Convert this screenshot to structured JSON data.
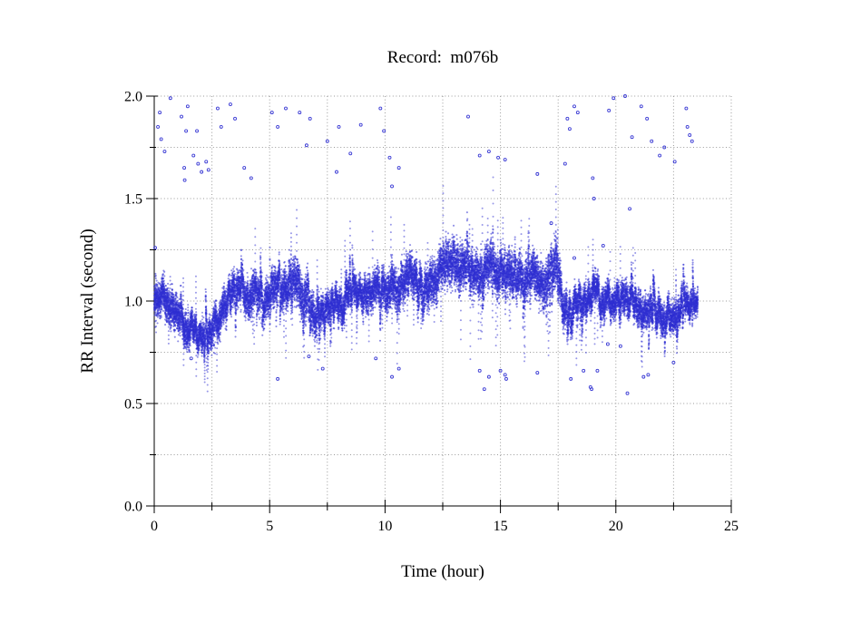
{
  "page": {
    "background": "#ffffff"
  },
  "record_id": "m076b",
  "chart_data": {
    "type": "scatter",
    "title": "Record:  m076b",
    "xlabel": "Time (hour)",
    "ylabel": "RR Interval (second)",
    "xlim": [
      0,
      25
    ],
    "ylim": [
      0,
      2
    ],
    "x_major_ticks": [
      0,
      5,
      10,
      15,
      20,
      25
    ],
    "x_major_labels": [
      "0",
      "5",
      "10",
      "15",
      "20",
      "25"
    ],
    "x_minor_step": 2.5,
    "y_major_ticks": [
      0,
      0.5,
      1,
      1.5,
      2
    ],
    "y_major_labels": [
      "0.0",
      "0.5",
      "1.0",
      "1.5",
      "2.0"
    ],
    "y_minor_step": 0.25,
    "grid": "dotted gray lines at every minor and major tick; top (2.0) and right (25) edges are dotted gridlines, left and bottom are solid spines",
    "grid_color": "#9a9a9a",
    "axis_color": "#000000",
    "point_color": "#2f2fd2",
    "data_t_range": [
      0,
      23.55
    ],
    "description": "Dense scatter of beat-to-beat RR intervals over ~23.5 hours. band_profile gives the slowly varying band center c and half-width w (seconds) versus time t (hours); the cloud is a noisy vertical-streaked band around c. outliers_high and outliers_low are isolated ectopic points [t,v].",
    "band_profile": [
      {
        "t": 0.0,
        "c": 0.97,
        "w": 0.09
      },
      {
        "t": 0.5,
        "c": 1.0,
        "w": 0.09
      },
      {
        "t": 1.0,
        "c": 0.94,
        "w": 0.09
      },
      {
        "t": 1.5,
        "c": 0.87,
        "w": 0.08
      },
      {
        "t": 2.0,
        "c": 0.84,
        "w": 0.07
      },
      {
        "t": 2.6,
        "c": 0.86,
        "w": 0.08
      },
      {
        "t": 3.2,
        "c": 0.97,
        "w": 0.09
      },
      {
        "t": 3.7,
        "c": 1.07,
        "w": 0.09
      },
      {
        "t": 4.1,
        "c": 1.06,
        "w": 0.09
      },
      {
        "t": 4.5,
        "c": 1.01,
        "w": 0.09
      },
      {
        "t": 5.0,
        "c": 1.04,
        "w": 0.1
      },
      {
        "t": 5.5,
        "c": 1.08,
        "w": 0.1
      },
      {
        "t": 6.0,
        "c": 1.05,
        "w": 0.11
      },
      {
        "t": 6.5,
        "c": 1.03,
        "w": 0.12
      },
      {
        "t": 7.0,
        "c": 0.92,
        "w": 0.1
      },
      {
        "t": 7.5,
        "c": 0.97,
        "w": 0.08
      },
      {
        "t": 8.0,
        "c": 1.0,
        "w": 0.08
      },
      {
        "t": 8.7,
        "c": 1.02,
        "w": 0.08
      },
      {
        "t": 9.4,
        "c": 1.04,
        "w": 0.09
      },
      {
        "t": 10.0,
        "c": 1.05,
        "w": 0.1
      },
      {
        "t": 10.7,
        "c": 1.09,
        "w": 0.1
      },
      {
        "t": 11.4,
        "c": 1.12,
        "w": 0.1
      },
      {
        "t": 12.0,
        "c": 1.12,
        "w": 0.11
      },
      {
        "t": 12.6,
        "c": 1.16,
        "w": 0.11
      },
      {
        "t": 13.0,
        "c": 1.2,
        "w": 0.12
      },
      {
        "t": 13.4,
        "c": 1.16,
        "w": 0.11
      },
      {
        "t": 14.0,
        "c": 1.14,
        "w": 0.11
      },
      {
        "t": 14.6,
        "c": 1.15,
        "w": 0.11
      },
      {
        "t": 15.2,
        "c": 1.16,
        "w": 0.11
      },
      {
        "t": 15.8,
        "c": 1.13,
        "w": 0.11
      },
      {
        "t": 16.4,
        "c": 1.12,
        "w": 0.11
      },
      {
        "t": 17.0,
        "c": 1.13,
        "w": 0.11
      },
      {
        "t": 17.45,
        "c": 1.19,
        "w": 0.13
      },
      {
        "t": 17.7,
        "c": 0.94,
        "w": 0.1
      },
      {
        "t": 18.1,
        "c": 0.99,
        "w": 0.09
      },
      {
        "t": 18.6,
        "c": 1.04,
        "w": 0.08
      },
      {
        "t": 19.2,
        "c": 1.04,
        "w": 0.08
      },
      {
        "t": 19.8,
        "c": 0.98,
        "w": 0.08
      },
      {
        "t": 20.3,
        "c": 1.0,
        "w": 0.08
      },
      {
        "t": 20.8,
        "c": 0.97,
        "w": 0.08
      },
      {
        "t": 21.3,
        "c": 0.93,
        "w": 0.08
      },
      {
        "t": 21.8,
        "c": 0.92,
        "w": 0.08
      },
      {
        "t": 22.3,
        "c": 0.94,
        "w": 0.08
      },
      {
        "t": 22.8,
        "c": 0.93,
        "w": 0.07
      },
      {
        "t": 23.2,
        "c": 0.96,
        "w": 0.07
      },
      {
        "t": 23.55,
        "c": 1.01,
        "w": 0.06
      }
    ],
    "outliers_high": [
      [
        0.04,
        1.26
      ],
      [
        0.16,
        1.85
      ],
      [
        0.24,
        1.92
      ],
      [
        0.3,
        1.79
      ],
      [
        0.45,
        1.73
      ],
      [
        0.7,
        1.99
      ],
      [
        1.18,
        1.9
      ],
      [
        1.3,
        1.65
      ],
      [
        1.32,
        1.59
      ],
      [
        1.38,
        1.83
      ],
      [
        1.45,
        1.95
      ],
      [
        1.7,
        1.71
      ],
      [
        1.85,
        1.83
      ],
      [
        1.9,
        1.67
      ],
      [
        2.05,
        1.63
      ],
      [
        2.25,
        1.68
      ],
      [
        2.35,
        1.64
      ],
      [
        2.75,
        1.94
      ],
      [
        2.9,
        1.85
      ],
      [
        3.3,
        1.96
      ],
      [
        3.5,
        1.89
      ],
      [
        3.9,
        1.65
      ],
      [
        4.2,
        1.6
      ],
      [
        5.1,
        1.92
      ],
      [
        5.35,
        1.85
      ],
      [
        5.7,
        1.94
      ],
      [
        6.3,
        1.92
      ],
      [
        6.6,
        1.76
      ],
      [
        6.75,
        1.89
      ],
      [
        7.5,
        1.78
      ],
      [
        7.9,
        1.63
      ],
      [
        8.0,
        1.85
      ],
      [
        8.5,
        1.72
      ],
      [
        8.95,
        1.86
      ],
      [
        9.8,
        1.94
      ],
      [
        9.95,
        1.83
      ],
      [
        10.2,
        1.7
      ],
      [
        10.3,
        1.56
      ],
      [
        10.6,
        1.65
      ],
      [
        13.6,
        1.9
      ],
      [
        14.1,
        1.71
      ],
      [
        14.5,
        1.73
      ],
      [
        14.9,
        1.7
      ],
      [
        15.2,
        1.69
      ],
      [
        16.6,
        1.62
      ],
      [
        17.2,
        1.38
      ],
      [
        17.8,
        1.67
      ],
      [
        17.9,
        1.89
      ],
      [
        18.0,
        1.84
      ],
      [
        18.2,
        1.95
      ],
      [
        18.2,
        1.21
      ],
      [
        18.35,
        1.92
      ],
      [
        19.0,
        1.6
      ],
      [
        19.05,
        1.5
      ],
      [
        19.45,
        1.27
      ],
      [
        19.7,
        1.93
      ],
      [
        19.9,
        1.99
      ],
      [
        20.4,
        2.0
      ],
      [
        20.6,
        1.45
      ],
      [
        20.7,
        1.8
      ],
      [
        21.1,
        1.95
      ],
      [
        21.35,
        1.89
      ],
      [
        21.55,
        1.78
      ],
      [
        21.9,
        1.71
      ],
      [
        22.1,
        1.75
      ],
      [
        22.55,
        1.68
      ],
      [
        23.05,
        1.94
      ],
      [
        23.1,
        1.85
      ],
      [
        23.2,
        1.81
      ],
      [
        23.3,
        1.78
      ]
    ],
    "outliers_low": [
      [
        1.6,
        0.72
      ],
      [
        5.35,
        0.62
      ],
      [
        6.7,
        0.73
      ],
      [
        7.3,
        0.67
      ],
      [
        9.6,
        0.72
      ],
      [
        10.3,
        0.63
      ],
      [
        10.6,
        0.67
      ],
      [
        14.1,
        0.66
      ],
      [
        14.3,
        0.57
      ],
      [
        14.5,
        0.63
      ],
      [
        15.0,
        0.66
      ],
      [
        15.2,
        0.64
      ],
      [
        15.25,
        0.62
      ],
      [
        16.6,
        0.65
      ],
      [
        18.05,
        0.62
      ],
      [
        18.6,
        0.66
      ],
      [
        18.9,
        0.58
      ],
      [
        18.95,
        0.57
      ],
      [
        19.2,
        0.66
      ],
      [
        19.65,
        0.79
      ],
      [
        20.2,
        0.78
      ],
      [
        20.5,
        0.55
      ],
      [
        21.2,
        0.63
      ],
      [
        21.4,
        0.64
      ],
      [
        22.5,
        0.7
      ]
    ]
  }
}
